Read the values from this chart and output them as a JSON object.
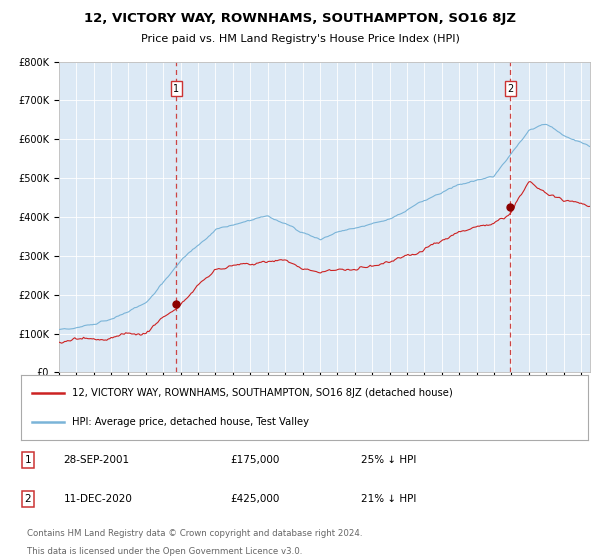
{
  "title": "12, VICTORY WAY, ROWNHAMS, SOUTHAMPTON, SO16 8JZ",
  "subtitle": "Price paid vs. HM Land Registry's House Price Index (HPI)",
  "bg_color": "#dce9f5",
  "red_line_label": "12, VICTORY WAY, ROWNHAMS, SOUTHAMPTON, SO16 8JZ (detached house)",
  "blue_line_label": "HPI: Average price, detached house, Test Valley",
  "sale1_date": 2001.75,
  "sale1_price": 175000,
  "sale2_date": 2020.92,
  "sale2_price": 425000,
  "xmin": 1995,
  "xmax": 2025.5,
  "ymin": 0,
  "ymax": 800000,
  "yticks": [
    0,
    100000,
    200000,
    300000,
    400000,
    500000,
    600000,
    700000,
    800000
  ],
  "ylabels": [
    "£0",
    "£100K",
    "£200K",
    "£300K",
    "£400K",
    "£500K",
    "£600K",
    "£700K",
    "£800K"
  ],
  "red_color": "#cc2222",
  "blue_color": "#7ab4d8",
  "marker_color": "#8B0000",
  "vline_color": "#cc4444",
  "footer1": "Contains HM Land Registry data © Crown copyright and database right 2024.",
  "footer2": "This data is licensed under the Open Government Licence v3.0."
}
